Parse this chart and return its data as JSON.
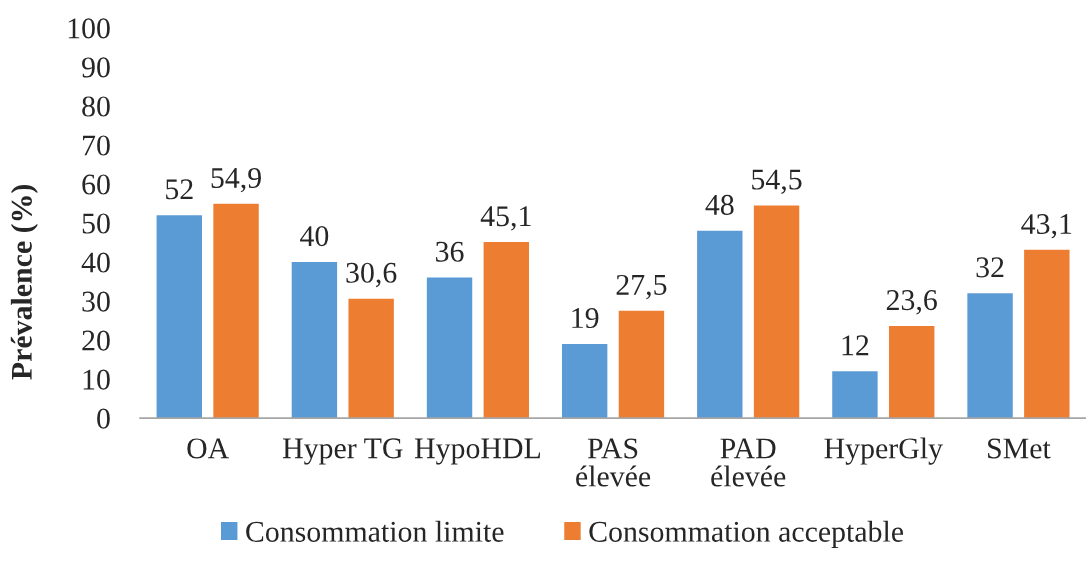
{
  "chart_data": {
    "type": "bar",
    "ylabel": "Prévalence (%)",
    "categories": [
      "OA",
      "Hyper TG",
      "HypoHDL",
      "PAS\nélevée",
      "PAD\nélevée",
      "HyperGly",
      "SMet"
    ],
    "series": [
      {
        "name": "Consommation limite",
        "color": "#5b9bd5",
        "values": [
          52,
          40,
          36,
          19,
          48,
          12,
          32
        ],
        "value_labels": [
          "52",
          "40",
          "36",
          "19",
          "48",
          "12",
          "32"
        ]
      },
      {
        "name": "Consommation acceptable",
        "color": "#ed7d31",
        "values": [
          54.9,
          30.6,
          45.1,
          27.5,
          54.5,
          23.6,
          43.1
        ],
        "value_labels": [
          "54,9",
          "30,6",
          "45,1",
          "27,5",
          "54,5",
          "23,6",
          "43,1"
        ]
      }
    ],
    "ylim": [
      0,
      100
    ],
    "yticks": [
      0,
      10,
      20,
      30,
      40,
      50,
      60,
      70,
      80,
      90,
      100
    ],
    "legend": "bottom"
  }
}
